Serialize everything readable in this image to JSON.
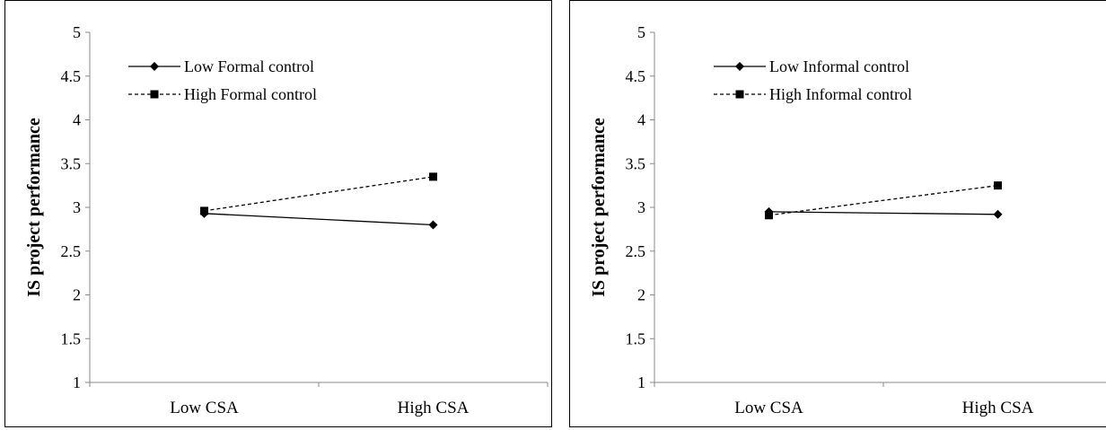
{
  "chart_data": [
    {
      "type": "line",
      "title": "",
      "xlabel": "",
      "ylabel": "IS project performance",
      "categories": [
        "Low CSA",
        "High CSA"
      ],
      "ylim": [
        1,
        5
      ],
      "yticks": [
        "1",
        "1.5",
        "2",
        "2.5",
        "3",
        "3.5",
        "4",
        "4.5",
        "5"
      ],
      "grid": false,
      "legend_position": "top-left",
      "series": [
        {
          "name": "Low Formal control",
          "values": [
            2.93,
            2.8
          ],
          "line_style": "solid",
          "marker": "diamond",
          "color": "#000000"
        },
        {
          "name": "High Formal control",
          "values": [
            2.96,
            3.35
          ],
          "line_style": "dashed",
          "marker": "square",
          "color": "#000000"
        }
      ]
    },
    {
      "type": "line",
      "title": "",
      "xlabel": "",
      "ylabel": "IS project performance",
      "categories": [
        "Low CSA",
        "High CSA"
      ],
      "ylim": [
        1,
        5
      ],
      "yticks": [
        "1",
        "1.5",
        "2",
        "2.5",
        "3",
        "3.5",
        "4",
        "4.5",
        "5"
      ],
      "grid": false,
      "legend_position": "top-left",
      "series": [
        {
          "name": "Low Informal control",
          "values": [
            2.95,
            2.92
          ],
          "line_style": "solid",
          "marker": "diamond",
          "color": "#000000"
        },
        {
          "name": "High Informal control",
          "values": [
            2.91,
            3.25
          ],
          "line_style": "dashed",
          "marker": "square",
          "color": "#000000"
        }
      ]
    }
  ]
}
